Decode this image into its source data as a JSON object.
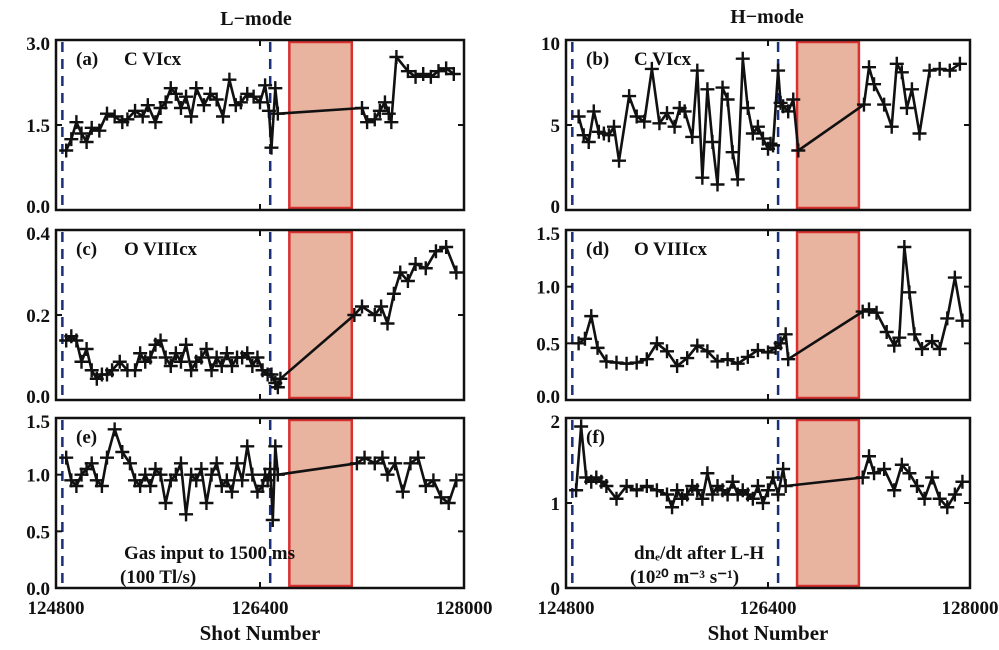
{
  "chart_data": {
    "columns": [
      {
        "title": "L−mode"
      },
      {
        "title": "H−mode"
      }
    ],
    "xlabel": "Shot Number",
    "xlim": [
      124800,
      128000
    ],
    "xticks": [
      124800,
      126400,
      128000
    ],
    "vlines": [
      124850,
      126480
    ],
    "shaded_region": [
      126630,
      127120
    ],
    "panels": [
      {
        "type": "line",
        "col": 0,
        "row": 0,
        "label": "(a)",
        "name": "C VIcx",
        "name_lines": [
          "C VIcx"
        ],
        "ylim": [
          0,
          3.0
        ],
        "yticks": [
          {
            "v": 0,
            "t": "0.0"
          },
          {
            "v": 1.5,
            "t": "1.5"
          },
          {
            "v": 3.0,
            "t": "3.0"
          }
        ],
        "x": [
          124880,
          124920,
          124960,
          125000,
          125040,
          125080,
          125140,
          125200,
          125260,
          125320,
          125360,
          125420,
          125480,
          125520,
          125580,
          125620,
          125660,
          125700,
          125740,
          125780,
          125820,
          125860,
          125900,
          125960,
          126010,
          126060,
          126110,
          126160,
          126210,
          126250,
          126300,
          126350,
          126400,
          126440,
          126470,
          126490,
          126520,
          126540,
          127200,
          127240,
          127300,
          127340,
          127380,
          127410,
          127430,
          127470,
          127560,
          127620,
          127680,
          127740,
          127800,
          127860,
          127920
        ],
        "y": [
          1.05,
          1.25,
          1.55,
          1.35,
          1.2,
          1.45,
          1.4,
          1.7,
          1.65,
          1.55,
          1.6,
          1.75,
          1.65,
          1.85,
          1.55,
          1.8,
          1.9,
          2.15,
          2.05,
          1.8,
          2.0,
          1.65,
          2.15,
          1.85,
          2.05,
          1.95,
          1.65,
          2.3,
          1.85,
          1.9,
          2.05,
          2.0,
          1.9,
          2.2,
          1.75,
          1.1,
          2.15,
          1.7,
          1.8,
          1.55,
          1.6,
          1.75,
          1.9,
          1.7,
          1.55,
          2.7,
          2.45,
          2.35,
          2.4,
          2.35,
          2.45,
          2.5,
          2.4
        ]
      },
      {
        "type": "line",
        "col": 1,
        "row": 0,
        "label": "(b)",
        "name": "C VIcx",
        "name_lines": [
          "C VIcx"
        ],
        "ylim": [
          0,
          10
        ],
        "yticks": [
          {
            "v": 0,
            "t": "0"
          },
          {
            "v": 5,
            "t": "5"
          },
          {
            "v": 10,
            "t": "10"
          }
        ],
        "x": [
          124900,
          124940,
          124980,
          125020,
          125060,
          125100,
          125140,
          125180,
          125220,
          125300,
          125360,
          125420,
          125480,
          125540,
          125600,
          125660,
          125700,
          125740,
          125800,
          125840,
          125880,
          125920,
          125960,
          126000,
          126040,
          126080,
          126120,
          126160,
          126200,
          126240,
          126280,
          126320,
          126360,
          126400,
          126420,
          126440,
          126480,
          126500,
          126520,
          126560,
          126600,
          126640,
          127160,
          127200,
          127240,
          127320,
          127380,
          127420,
          127460,
          127500,
          127540,
          127600,
          127680,
          127760,
          127840,
          127920
        ],
        "y": [
          5.5,
          4.4,
          4.0,
          5.8,
          4.6,
          4.5,
          4.4,
          4.9,
          2.9,
          6.7,
          5.5,
          5.2,
          8.3,
          5.1,
          5.7,
          4.9,
          6.0,
          5.8,
          4.3,
          8.2,
          1.9,
          7.1,
          4.0,
          1.5,
          7.2,
          6.5,
          3.4,
          1.8,
          8.9,
          6.0,
          4.5,
          4.9,
          4.2,
          3.6,
          3.9,
          3.8,
          8.2,
          6.3,
          6.1,
          5.8,
          6.5,
          3.5,
          6.2,
          8.4,
          7.4,
          6.2,
          4.9,
          8.6,
          8.1,
          6.0,
          7.1,
          4.5,
          8.2,
          8.3,
          8.2,
          8.6
        ]
      },
      {
        "type": "line",
        "col": 0,
        "row": 1,
        "label": "(c)",
        "name": "O VIIIcx",
        "name_lines": [
          "O VIIIcx"
        ],
        "ylim": [
          0,
          0.4
        ],
        "yticks": [
          {
            "v": 0,
            "t": "0.0"
          },
          {
            "v": 0.2,
            "t": "0.2"
          },
          {
            "v": 0.4,
            "t": "0.4"
          }
        ],
        "x": [
          124880,
          124920,
          124960,
          125000,
          125040,
          125080,
          125120,
          125160,
          125200,
          125240,
          125300,
          125360,
          125420,
          125460,
          125500,
          125540,
          125580,
          125620,
          125660,
          125700,
          125740,
          125780,
          125820,
          125860,
          125900,
          125940,
          125980,
          126020,
          126060,
          126100,
          126140,
          126180,
          126220,
          126260,
          126300,
          126340,
          126380,
          126420,
          126460,
          126490,
          126520,
          126540,
          126560,
          127140,
          127200,
          127300,
          127350,
          127400,
          127450,
          127500,
          127560,
          127620,
          127700,
          127780,
          127860,
          127940
        ],
        "y": [
          0.14,
          0.15,
          0.14,
          0.09,
          0.12,
          0.07,
          0.05,
          0.06,
          0.06,
          0.07,
          0.09,
          0.07,
          0.07,
          0.11,
          0.09,
          0.1,
          0.13,
          0.14,
          0.1,
          0.08,
          0.11,
          0.09,
          0.13,
          0.07,
          0.09,
          0.1,
          0.12,
          0.07,
          0.1,
          0.08,
          0.11,
          0.08,
          0.1,
          0.1,
          0.11,
          0.08,
          0.1,
          0.07,
          0.06,
          0.06,
          0.04,
          0.03,
          0.05,
          0.2,
          0.22,
          0.2,
          0.22,
          0.18,
          0.25,
          0.3,
          0.28,
          0.32,
          0.31,
          0.35,
          0.36,
          0.3
        ]
      },
      {
        "type": "line",
        "col": 1,
        "row": 1,
        "label": "(d)",
        "name": "O VIIIcx",
        "name_lines": [
          "O VIIIcx"
        ],
        "ylim": [
          0,
          1.5
        ],
        "yticks": [
          {
            "v": 0,
            "t": "0.0"
          },
          {
            "v": 0.5,
            "t": "0.5"
          },
          {
            "v": 1.0,
            "t": "1.0"
          },
          {
            "v": 1.5,
            "t": "1.5"
          }
        ],
        "x": [
          124900,
          124950,
          125000,
          125050,
          125120,
          125200,
          125280,
          125360,
          125440,
          125520,
          125600,
          125680,
          125760,
          125840,
          125920,
          126000,
          126080,
          126160,
          126240,
          126320,
          126400,
          126460,
          126500,
          126540,
          126560,
          127150,
          127200,
          127260,
          127340,
          127400,
          127440,
          127480,
          127520,
          127560,
          127620,
          127700,
          127760,
          127820,
          127880,
          127940
        ],
        "y": [
          0.5,
          0.54,
          0.74,
          0.46,
          0.34,
          0.33,
          0.32,
          0.33,
          0.36,
          0.5,
          0.43,
          0.3,
          0.37,
          0.48,
          0.43,
          0.34,
          0.36,
          0.32,
          0.38,
          0.44,
          0.42,
          0.46,
          0.5,
          0.58,
          0.36,
          0.78,
          0.8,
          0.77,
          0.6,
          0.48,
          0.55,
          1.35,
          0.95,
          0.58,
          0.45,
          0.52,
          0.45,
          0.72,
          1.08,
          0.7
        ]
      },
      {
        "type": "line",
        "col": 0,
        "row": 2,
        "label": "(e)",
        "name": "Gas input to 1500 ms (100 Tl/s)",
        "name_lines": [
          "Gas input to 1500 ms",
          "(100 Tl/s)"
        ],
        "ylim": [
          0,
          1.5
        ],
        "yticks": [
          {
            "v": 0,
            "t": "0.0"
          },
          {
            "v": 0.5,
            "t": "0.5"
          },
          {
            "v": 1.0,
            "t": "1.0"
          },
          {
            "v": 1.5,
            "t": "1.5"
          }
        ],
        "x": [
          124880,
          124920,
          124960,
          125000,
          125040,
          125080,
          125120,
          125160,
          125200,
          125260,
          125320,
          125380,
          125420,
          125460,
          125500,
          125540,
          125580,
          125620,
          125660,
          125700,
          125740,
          125780,
          125820,
          125860,
          125900,
          125940,
          125980,
          126020,
          126060,
          126100,
          126140,
          126180,
          126220,
          126260,
          126300,
          126340,
          126380,
          126420,
          126440,
          126460,
          126480,
          126500,
          126520,
          126540,
          127160,
          127220,
          127300,
          127360,
          127400,
          127460,
          127520,
          127580,
          127640,
          127700,
          127760,
          127820,
          127880,
          127940
        ],
        "y": [
          1.15,
          0.95,
          0.9,
          1.0,
          1.05,
          1.1,
          0.95,
          0.9,
          1.15,
          1.4,
          1.2,
          1.1,
          0.95,
          0.9,
          1.0,
          0.9,
          1.05,
          1.0,
          0.75,
          0.95,
          1.0,
          1.1,
          0.65,
          1.0,
          0.95,
          1.05,
          0.75,
          1.0,
          1.1,
          0.9,
          0.95,
          0.85,
          1.1,
          0.95,
          1.25,
          1.0,
          0.85,
          0.9,
          1.0,
          0.95,
          1.05,
          0.6,
          1.25,
          1.0,
          1.1,
          1.15,
          1.1,
          1.15,
          1.0,
          1.1,
          0.85,
          1.1,
          1.15,
          0.9,
          0.95,
          0.8,
          0.75,
          0.95
        ]
      },
      {
        "type": "line",
        "col": 1,
        "row": 2,
        "label": "(f)",
        "name": "dne/dt after L-H (10^20 m^-3 s^-1)",
        "name_lines": [
          "dnₑ/dt after L-H",
          "(10²⁰ m⁻³ s⁻¹)"
        ],
        "ylim": [
          0,
          2
        ],
        "yticks": [
          {
            "v": 0,
            "t": "0"
          },
          {
            "v": 1,
            "t": "1"
          },
          {
            "v": 2,
            "t": "2"
          }
        ],
        "x": [
          124880,
          124920,
          124960,
          125000,
          125040,
          125080,
          125120,
          125200,
          125280,
          125360,
          125440,
          125520,
          125600,
          125640,
          125680,
          125720,
          125760,
          125800,
          125840,
          125880,
          125920,
          125960,
          126000,
          126040,
          126080,
          126120,
          126160,
          126200,
          126240,
          126280,
          126320,
          126360,
          126400,
          126440,
          126480,
          126520,
          126540,
          127150,
          127200,
          127240,
          127320,
          127400,
          127460,
          127520,
          127580,
          127640,
          127700,
          127760,
          127820,
          127880,
          127940
        ],
        "y": [
          1.15,
          1.9,
          1.3,
          1.25,
          1.3,
          1.25,
          1.2,
          1.05,
          1.2,
          1.15,
          1.2,
          1.15,
          1.1,
          0.95,
          1.15,
          1.05,
          1.1,
          1.2,
          1.15,
          1.05,
          1.35,
          1.1,
          1.2,
          1.15,
          1.1,
          1.25,
          1.1,
          1.15,
          1.1,
          1.05,
          1.2,
          1.0,
          1.15,
          1.3,
          1.1,
          1.4,
          1.2,
          1.3,
          1.55,
          1.35,
          1.4,
          1.15,
          1.45,
          1.35,
          1.2,
          1.05,
          1.3,
          1.05,
          0.95,
          1.1,
          1.25
        ]
      }
    ]
  }
}
